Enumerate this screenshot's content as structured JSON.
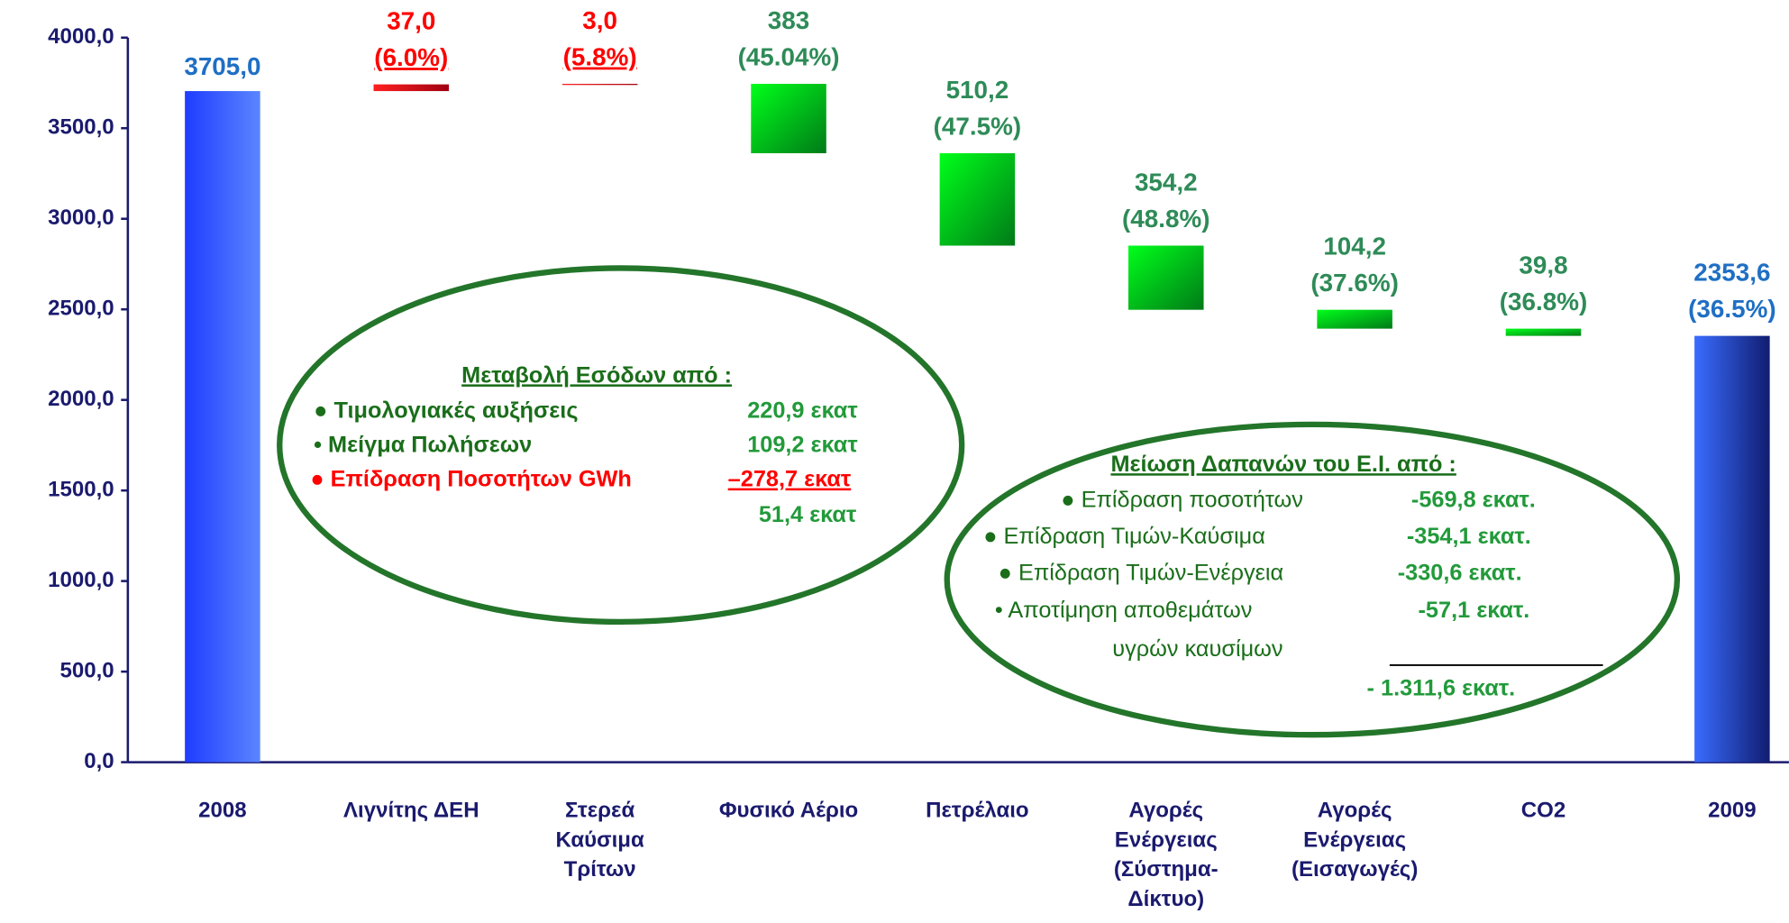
{
  "chart_data": {
    "type": "waterfall",
    "categories": [
      [
        "2008"
      ],
      [
        "Λιγνίτης ΔΕΗ"
      ],
      [
        "Στερεά",
        "Καύσιμα",
        "Τρίτων"
      ],
      [
        "Φυσικό Αέριο"
      ],
      [
        "Πετρέλαιο"
      ],
      [
        "Αγορές",
        "Ενέργειας",
        "(Σύστημα-",
        "Δίκτυο)"
      ],
      [
        "Αγορές",
        "Ενέργειας",
        "(Εισαγωγές)"
      ],
      [
        "CO2"
      ],
      [
        "2009"
      ]
    ],
    "measure": [
      "absolute",
      "relative",
      "relative",
      "relative",
      "relative",
      "relative",
      "relative",
      "relative",
      "total"
    ],
    "values": [
      3705.0,
      37.0,
      3.0,
      -383,
      -510.2,
      -354.2,
      -104.2,
      -39.8,
      2353.6
    ],
    "value_labels": [
      "3705,0",
      "37,0",
      "3,0",
      "383",
      "510,2",
      "354,2",
      "104,2",
      "39,8",
      "2353,6"
    ],
    "percent_labels": [
      null,
      "(6.0%)",
      "(5.8%)",
      "(45.04%)",
      "(47.5%)",
      "(48.8%)",
      "(37.6%)",
      "(36.8%)",
      "(36.5%)"
    ],
    "colors": [
      "#2f4fff",
      "#e0101a",
      "#e0101a",
      "#1ec81e",
      "#1ec81e",
      "#1ec81e",
      "#1ec81e",
      "#1ec81e",
      "#1a3fd8"
    ],
    "label_colors": [
      "#1f6fc4",
      "#ff0000",
      "#ff0000",
      "#2e8b57",
      "#2e8b57",
      "#2e8b57",
      "#2e8b57",
      "#2e8b57",
      "#1f6fc4"
    ],
    "ylim": [
      0,
      4000
    ],
    "yticks": [
      {
        "value": 0,
        "label": "0,0"
      },
      {
        "value": 500,
        "label": "500,0"
      },
      {
        "value": 1000,
        "label": "1000,0"
      },
      {
        "value": 1500,
        "label": "1500,0"
      },
      {
        "value": 2000,
        "label": "2000,0"
      },
      {
        "value": 2500,
        "label": "2500,0"
      },
      {
        "value": 3000,
        "label": "3000,0"
      },
      {
        "value": 3500,
        "label": "3500,0"
      },
      {
        "value": 4000,
        "label": "4000,0"
      }
    ],
    "annotations": [
      {
        "title": "Μεταβολή Εσόδων από :",
        "items": [
          {
            "text": "● Τιμολογιακές αυξήσεις",
            "amount": "220,9 εκατ"
          },
          {
            "text": "• Μείγμα Πωλήσεων",
            "amount": "109,2 εκατ"
          },
          {
            "text": "● Επίδραση Ποσοτήτων GWh",
            "amount": "–278,7 εκατ"
          }
        ],
        "total": "51,4 εκατ"
      },
      {
        "title": "Μείωση Δαπανών του Ε.Ι. από :",
        "items": [
          {
            "text": "● Επίδραση ποσοτήτων",
            "amount": "-569,8 εκατ."
          },
          {
            "text": "● Επίδραση Τιμών-Καύσιμα",
            "amount": "-354,1 εκατ."
          },
          {
            "text": "● Επίδραση Τιμών-Ενέργεια",
            "amount": "-330,6 εκατ."
          },
          {
            "text": "•   Αποτίμηση αποθεμάτων",
            "amount": "-57,1 εκατ."
          }
        ],
        "note": "υγρών καυσίμων",
        "total": "- 1.311,6 εκατ."
      }
    ]
  }
}
